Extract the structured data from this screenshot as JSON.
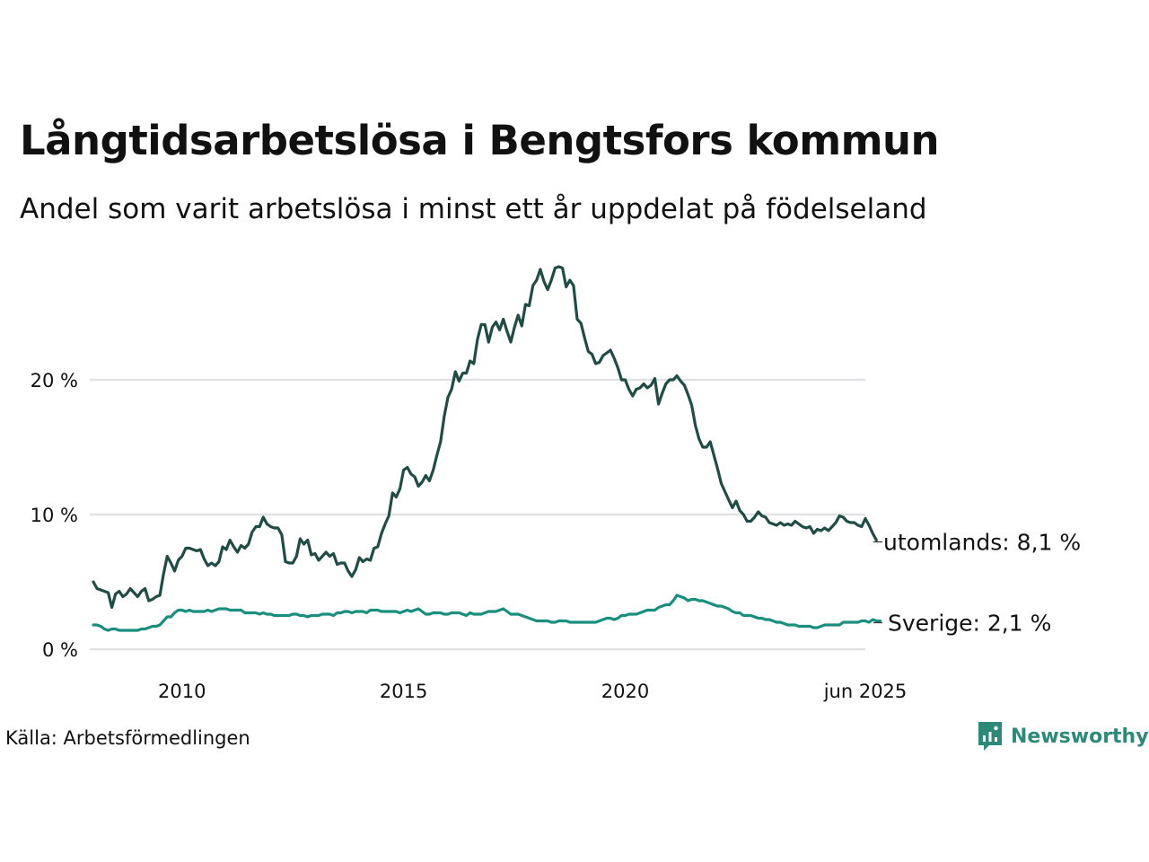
{
  "title": "Långtidsarbetslösa i Bengtsfors kommun",
  "subtitle": "Andel som varit arbetslösa i minst ett år uppdelat på födelseland",
  "source": "Källa: Arbetsförmedlingen",
  "brand": {
    "name": "Newsworthy",
    "icon": "newsworthy-logo-icon",
    "color": "#2d8a78"
  },
  "chart_data": {
    "type": "line",
    "x_start": 2008.0,
    "x_step": 0.0833333,
    "xlim": [
      2008.0,
      2025.4167
    ],
    "ylim": [
      0,
      30
    ],
    "grid": true,
    "yticks": [
      {
        "value": 0,
        "label": "0 %"
      },
      {
        "value": 10,
        "label": "10 %"
      },
      {
        "value": 20,
        "label": "20 %"
      }
    ],
    "xticks": [
      {
        "value": 2010,
        "label": "2010"
      },
      {
        "value": 2015,
        "label": "2015"
      },
      {
        "value": 2020,
        "label": "2020"
      },
      {
        "value": 2025.4167,
        "label": "jun 2025"
      }
    ],
    "series": [
      {
        "name": "utomlands",
        "end_label": "utomlands: 8,1 %",
        "color": "#1f4d45",
        "values": [
          5.0,
          4.5,
          4.4,
          4.3,
          4.2,
          3.1,
          4.1,
          4.3,
          3.9,
          4.1,
          4.5,
          4.2,
          3.9,
          4.3,
          4.5,
          3.6,
          3.7,
          3.9,
          4.0,
          5.6,
          6.9,
          6.4,
          5.8,
          6.6,
          6.9,
          7.5,
          7.5,
          7.4,
          7.3,
          7.4,
          6.7,
          6.2,
          6.4,
          6.2,
          6.5,
          7.6,
          7.4,
          8.1,
          7.6,
          7.2,
          7.7,
          7.5,
          7.8,
          8.7,
          9.1,
          9.1,
          9.8,
          9.3,
          9.1,
          9.0,
          9.0,
          8.5,
          6.5,
          6.4,
          6.4,
          6.9,
          8.2,
          7.8,
          8.1,
          7.0,
          7.1,
          6.6,
          6.9,
          7.2,
          6.9,
          7.1,
          6.3,
          6.4,
          6.4,
          5.8,
          5.4,
          5.9,
          6.8,
          6.5,
          6.7,
          6.6,
          7.5,
          7.6,
          8.6,
          9.3,
          9.9,
          11.6,
          11.3,
          11.9,
          13.3,
          13.5,
          13.0,
          12.8,
          12.1,
          12.4,
          12.9,
          12.5,
          13.3,
          14.4,
          15.4,
          17.3,
          18.7,
          19.3,
          20.6,
          19.9,
          20.5,
          20.5,
          21.4,
          21.2,
          23.0,
          24.1,
          24.1,
          22.8,
          23.9,
          24.3,
          23.7,
          24.5,
          23.6,
          22.8,
          23.9,
          24.8,
          24.0,
          25.6,
          25.5,
          27.0,
          27.4,
          28.2,
          27.3,
          26.7,
          27.4,
          28.3,
          28.4,
          28.3,
          26.9,
          27.4,
          27.0,
          24.5,
          24.2,
          23.1,
          22.1,
          21.9,
          21.2,
          21.3,
          21.8,
          22.0,
          22.2,
          21.6,
          20.9,
          20.0,
          20.0,
          19.3,
          18.8,
          19.3,
          19.4,
          19.7,
          19.4,
          19.6,
          20.1,
          18.2,
          19.0,
          19.7,
          20.0,
          20.0,
          20.3,
          19.9,
          19.6,
          18.9,
          18.1,
          16.6,
          15.6,
          15.0,
          15.0,
          15.4,
          14.4,
          13.4,
          12.3,
          11.7,
          11.1,
          10.5,
          11.0,
          10.3,
          10.0,
          9.5,
          9.5,
          9.8,
          10.2,
          9.9,
          9.8,
          9.4,
          9.3,
          9.2,
          9.4,
          9.2,
          9.3,
          9.2,
          9.5,
          9.3,
          9.1,
          9.0,
          9.1,
          8.6,
          8.9,
          8.8,
          9.0,
          8.8,
          9.1,
          9.4,
          9.9,
          9.8,
          9.5,
          9.4,
          9.4,
          9.2,
          9.1,
          9.7,
          9.2,
          8.6,
          8.1
        ]
      },
      {
        "name": "Sverige",
        "end_label": "Sverige: 2,1 %",
        "color": "#1a8f7e",
        "values": [
          1.8,
          1.8,
          1.7,
          1.5,
          1.4,
          1.5,
          1.5,
          1.4,
          1.4,
          1.4,
          1.4,
          1.4,
          1.4,
          1.5,
          1.5,
          1.6,
          1.7,
          1.7,
          1.8,
          2.1,
          2.4,
          2.4,
          2.7,
          2.9,
          2.9,
          2.8,
          2.9,
          2.8,
          2.8,
          2.8,
          2.8,
          2.9,
          2.8,
          2.9,
          3.0,
          3.0,
          3.0,
          2.9,
          2.9,
          2.9,
          2.9,
          2.7,
          2.7,
          2.7,
          2.7,
          2.6,
          2.7,
          2.6,
          2.6,
          2.5,
          2.5,
          2.5,
          2.5,
          2.5,
          2.6,
          2.6,
          2.5,
          2.5,
          2.4,
          2.5,
          2.5,
          2.5,
          2.6,
          2.6,
          2.6,
          2.5,
          2.7,
          2.7,
          2.8,
          2.8,
          2.7,
          2.8,
          2.8,
          2.8,
          2.7,
          2.9,
          2.9,
          2.9,
          2.8,
          2.8,
          2.8,
          2.8,
          2.8,
          2.7,
          2.8,
          2.9,
          2.8,
          2.9,
          3.0,
          2.8,
          2.6,
          2.6,
          2.7,
          2.7,
          2.7,
          2.6,
          2.6,
          2.7,
          2.7,
          2.7,
          2.6,
          2.5,
          2.7,
          2.6,
          2.6,
          2.6,
          2.7,
          2.8,
          2.8,
          2.8,
          2.9,
          3.0,
          2.8,
          2.6,
          2.6,
          2.6,
          2.5,
          2.4,
          2.3,
          2.2,
          2.1,
          2.1,
          2.1,
          2.1,
          2.0,
          2.0,
          2.1,
          2.1,
          2.1,
          2.0,
          2.0,
          2.0,
          2.0,
          2.0,
          2.0,
          2.0,
          2.0,
          2.1,
          2.2,
          2.3,
          2.3,
          2.2,
          2.3,
          2.5,
          2.5,
          2.6,
          2.6,
          2.6,
          2.7,
          2.8,
          2.9,
          2.9,
          2.9,
          3.1,
          3.2,
          3.3,
          3.3,
          3.6,
          4.0,
          3.9,
          3.8,
          3.6,
          3.7,
          3.7,
          3.6,
          3.6,
          3.5,
          3.4,
          3.3,
          3.2,
          3.2,
          3.1,
          3.0,
          2.8,
          2.7,
          2.7,
          2.5,
          2.5,
          2.5,
          2.4,
          2.3,
          2.3,
          2.2,
          2.2,
          2.1,
          2.0,
          2.0,
          1.9,
          1.8,
          1.8,
          1.8,
          1.7,
          1.7,
          1.7,
          1.7,
          1.6,
          1.6,
          1.7,
          1.8,
          1.8,
          1.8,
          1.8,
          1.8,
          2.0,
          2.0,
          2.0,
          2.0,
          2.0,
          2.1,
          2.1,
          2.0,
          2.2,
          2.1,
          2.1
        ]
      }
    ]
  }
}
